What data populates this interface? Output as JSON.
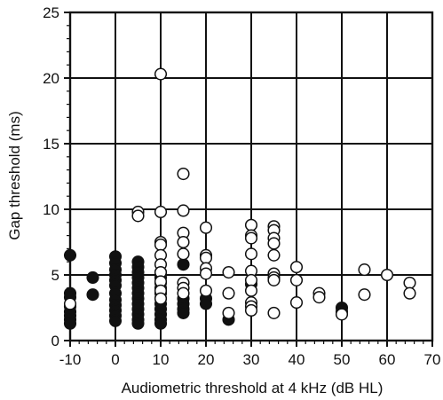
{
  "chart_data": {
    "type": "scatter",
    "title": "",
    "xlabel": "Audiometric threshold at 4 kHz (dB HL)",
    "ylabel": "Gap threshold (ms)",
    "xlim": [
      -10,
      70
    ],
    "ylim": [
      0,
      25
    ],
    "x_ticks": [
      "-10",
      "0",
      "10",
      "20",
      "30",
      "40",
      "50",
      "60",
      "70"
    ],
    "y_ticks": [
      "0",
      "5",
      "10",
      "15",
      "20",
      "25"
    ],
    "grid": true,
    "legend": "none",
    "series": [
      {
        "marker": "filled-circle",
        "color": "#111111",
        "points": [
          [
            -10,
            6.5
          ],
          [
            -10,
            3.6
          ],
          [
            -10,
            3.3
          ],
          [
            -10,
            2.6
          ],
          [
            -10,
            2.2
          ],
          [
            -10,
            1.9
          ],
          [
            -10,
            1.6
          ],
          [
            -10,
            1.3
          ],
          [
            -5,
            4.8
          ],
          [
            -5,
            3.5
          ],
          [
            0,
            6.4
          ],
          [
            0,
            5.9
          ],
          [
            0,
            5.4
          ],
          [
            0,
            5.0
          ],
          [
            0,
            4.6
          ],
          [
            0,
            4.2
          ],
          [
            0,
            3.6
          ],
          [
            0,
            3.1
          ],
          [
            0,
            2.7
          ],
          [
            0,
            2.3
          ],
          [
            0,
            1.9
          ],
          [
            0,
            1.5
          ],
          [
            5,
            6.0
          ],
          [
            5,
            5.6
          ],
          [
            5,
            5.2
          ],
          [
            5,
            4.8
          ],
          [
            5,
            4.4
          ],
          [
            5,
            4.0
          ],
          [
            5,
            3.6
          ],
          [
            5,
            3.2
          ],
          [
            5,
            2.8
          ],
          [
            5,
            2.4
          ],
          [
            5,
            2.0
          ],
          [
            5,
            1.6
          ],
          [
            5,
            1.3
          ],
          [
            10,
            5.2
          ],
          [
            10,
            4.8
          ],
          [
            10,
            4.4
          ],
          [
            10,
            4.0
          ],
          [
            10,
            3.6
          ],
          [
            10,
            3.2
          ],
          [
            10,
            2.8
          ],
          [
            10,
            2.4
          ],
          [
            10,
            2.0
          ],
          [
            10,
            1.6
          ],
          [
            10,
            1.3
          ],
          [
            15,
            5.8
          ],
          [
            15,
            3.2
          ],
          [
            15,
            2.8
          ],
          [
            15,
            2.4
          ],
          [
            15,
            2.1
          ],
          [
            20,
            3.2
          ],
          [
            20,
            2.8
          ],
          [
            25,
            1.6
          ],
          [
            30,
            4.3
          ],
          [
            50,
            2.5
          ],
          [
            50,
            2.2
          ]
        ]
      },
      {
        "marker": "open-circle",
        "color": "#111111",
        "points": [
          [
            -10,
            2.8
          ],
          [
            5,
            9.8
          ],
          [
            5,
            9.5
          ],
          [
            10,
            20.3
          ],
          [
            10,
            9.8
          ],
          [
            10,
            7.5
          ],
          [
            10,
            7.3
          ],
          [
            10,
            6.5
          ],
          [
            10,
            5.8
          ],
          [
            10,
            5.2
          ],
          [
            10,
            4.5
          ],
          [
            10,
            3.8
          ],
          [
            10,
            3.2
          ],
          [
            15,
            12.7
          ],
          [
            15,
            9.9
          ],
          [
            15,
            8.2
          ],
          [
            15,
            7.5
          ],
          [
            15,
            6.6
          ],
          [
            15,
            4.4
          ],
          [
            15,
            4.0
          ],
          [
            15,
            3.6
          ],
          [
            20,
            8.6
          ],
          [
            20,
            6.5
          ],
          [
            20,
            6.3
          ],
          [
            20,
            5.5
          ],
          [
            20,
            5.1
          ],
          [
            20,
            3.8
          ],
          [
            25,
            5.2
          ],
          [
            25,
            3.6
          ],
          [
            25,
            2.1
          ],
          [
            30,
            8.8
          ],
          [
            30,
            8.0
          ],
          [
            30,
            7.8
          ],
          [
            30,
            6.6
          ],
          [
            30,
            5.3
          ],
          [
            30,
            4.6
          ],
          [
            30,
            3.8
          ],
          [
            30,
            2.9
          ],
          [
            30,
            2.6
          ],
          [
            30,
            2.3
          ],
          [
            35,
            8.7
          ],
          [
            35,
            8.4
          ],
          [
            35,
            7.8
          ],
          [
            35,
            7.4
          ],
          [
            35,
            6.5
          ],
          [
            35,
            5.1
          ],
          [
            35,
            4.8
          ],
          [
            35,
            4.6
          ],
          [
            35,
            2.1
          ],
          [
            40,
            5.6
          ],
          [
            40,
            4.6
          ],
          [
            40,
            2.9
          ],
          [
            45,
            3.6
          ],
          [
            45,
            3.3
          ],
          [
            50,
            2.0
          ],
          [
            55,
            5.4
          ],
          [
            55,
            3.5
          ],
          [
            60,
            5.0
          ],
          [
            65,
            4.4
          ],
          [
            65,
            3.6
          ]
        ]
      }
    ]
  }
}
